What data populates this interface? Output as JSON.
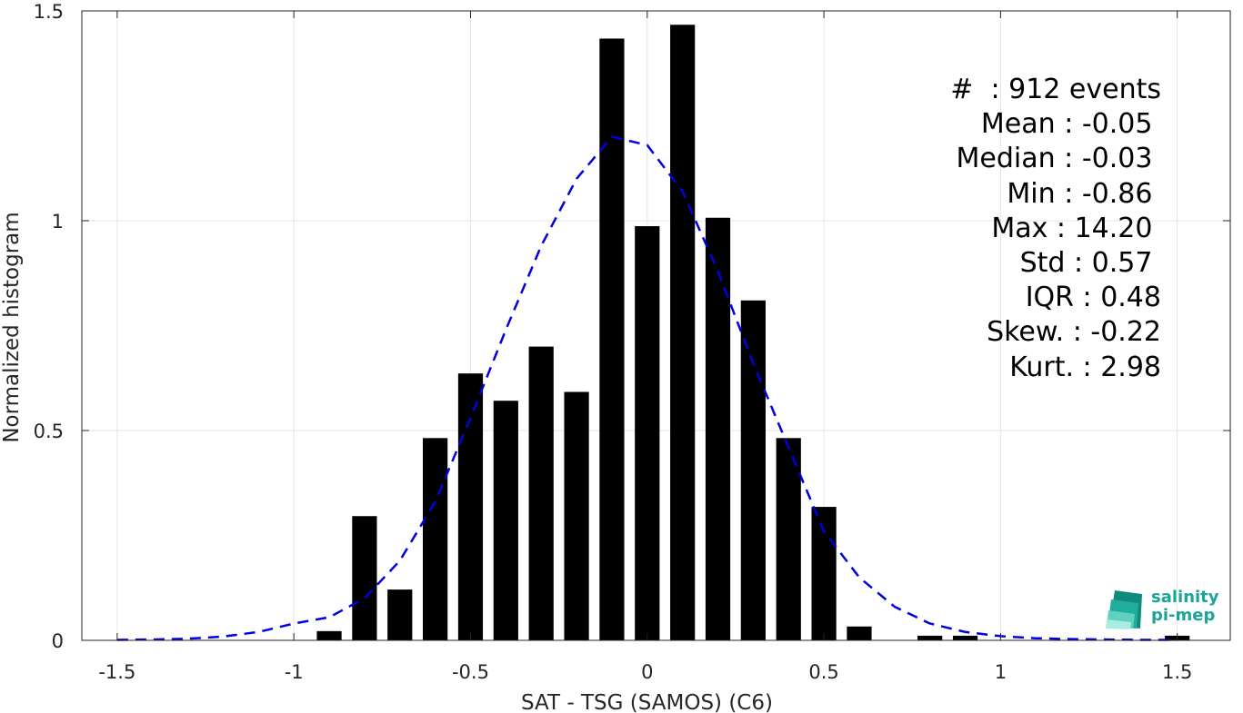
{
  "chart_data": {
    "type": "bar",
    "xlabel": "SAT - TSG (SAMOS) (C6)",
    "ylabel": "Normalized histogram",
    "xlim": [
      -1.6,
      1.65
    ],
    "ylim": [
      0,
      1.5
    ],
    "x_ticks": [
      -1.5,
      -1,
      -0.5,
      0,
      0.5,
      1,
      1.5
    ],
    "x_tick_labels": [
      "-1.5",
      "-1",
      "-0.5",
      "0",
      "0.5",
      "1",
      "1.5"
    ],
    "y_ticks": [
      0,
      0.5,
      1,
      1.5
    ],
    "y_tick_labels": [
      "0",
      "0.5",
      "1",
      "1.5"
    ],
    "grid": true,
    "bar_width": 0.07,
    "bars": {
      "color": "#000000",
      "x": [
        -0.9,
        -0.8,
        -0.7,
        -0.6,
        -0.5,
        -0.4,
        -0.3,
        -0.2,
        -0.1,
        0.0,
        0.1,
        0.2,
        0.3,
        0.4,
        0.5,
        0.6,
        0.8,
        0.9,
        1.5
      ],
      "values": [
        0.022,
        0.296,
        0.121,
        0.482,
        0.636,
        0.571,
        0.7,
        0.592,
        1.434,
        0.987,
        1.467,
        1.007,
        0.81,
        0.482,
        0.318,
        0.033,
        0.011,
        0.011,
        0.011
      ]
    },
    "fit_curve": {
      "style": "dashed",
      "color": "#0000e0",
      "x": [
        -1.5,
        -1.4,
        -1.3,
        -1.2,
        -1.1,
        -1.0,
        -0.9,
        -0.8,
        -0.7,
        -0.6,
        -0.5,
        -0.4,
        -0.3,
        -0.2,
        -0.1,
        0.0,
        0.1,
        0.2,
        0.3,
        0.4,
        0.5,
        0.6,
        0.7,
        0.8,
        0.9,
        1.0,
        1.1,
        1.2,
        1.3,
        1.4,
        1.5
      ],
      "y": [
        0.001,
        0.002,
        0.004,
        0.009,
        0.02,
        0.04,
        0.055,
        0.1,
        0.19,
        0.33,
        0.53,
        0.74,
        0.94,
        1.1,
        1.2,
        1.18,
        1.07,
        0.88,
        0.66,
        0.46,
        0.26,
        0.15,
        0.08,
        0.04,
        0.02,
        0.01,
        0.005,
        0.003,
        0.002,
        0.001,
        0.001
      ]
    }
  },
  "stats_box": {
    "lines": [
      "#  : 912 events",
      "Mean : -0.05 ",
      "Median : -0.03 ",
      "Min : -0.86 ",
      "Max : 14.20 ",
      "Std : 0.57 ",
      "IQR : 0.48",
      "Skew. : -0.22",
      "Kurt. : 2.98"
    ]
  },
  "logo": {
    "line1": "salinity",
    "line2": "pi-mep",
    "color": "#1aa596"
  }
}
